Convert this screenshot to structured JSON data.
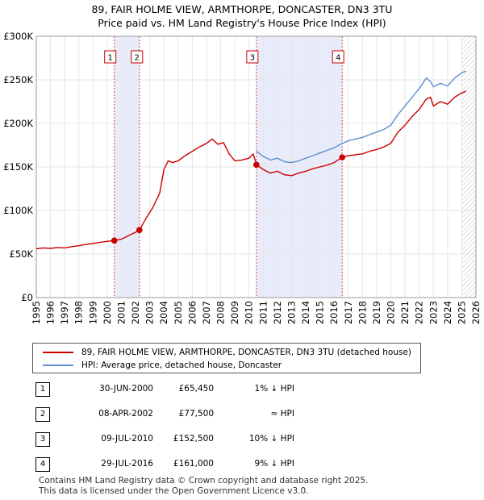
{
  "chart_data": {
    "type": "line",
    "title": "89, FAIR HOLME VIEW, ARMTHORPE, DONCASTER, DN3 3TU",
    "subtitle": "Price paid vs. HM Land Registry's House Price Index (HPI)",
    "xlim": [
      1995,
      2026
    ],
    "ylim": [
      0,
      300000
    ],
    "x_ticks": [
      "1995",
      "1996",
      "1997",
      "1998",
      "1999",
      "2000",
      "2001",
      "2002",
      "2003",
      "2004",
      "2005",
      "2006",
      "2007",
      "2008",
      "2009",
      "2010",
      "2011",
      "2012",
      "2013",
      "2014",
      "2015",
      "2016",
      "2017",
      "2018",
      "2019",
      "2020",
      "2021",
      "2022",
      "2023",
      "2024",
      "2025",
      "2026"
    ],
    "y_ticks": [
      {
        "value": 0,
        "label": "£0"
      },
      {
        "value": 50000,
        "label": "£50K"
      },
      {
        "value": 100000,
        "label": "£100K"
      },
      {
        "value": 150000,
        "label": "£150K"
      },
      {
        "value": 200000,
        "label": "£200K"
      },
      {
        "value": 250000,
        "label": "£250K"
      },
      {
        "value": 300000,
        "label": "£300K"
      }
    ],
    "shaded_periods": [
      [
        2000.5,
        2002.27
      ],
      [
        2010.52,
        2016.57
      ]
    ],
    "forecast_start": 2025.0,
    "series": [
      {
        "name": "89, FAIR HOLME VIEW, ARMTHORPE, DONCASTER, DN3 3TU (detached house)",
        "color": "#cc0000",
        "points": [
          [
            1995.0,
            56000
          ],
          [
            1995.5,
            57000
          ],
          [
            1996.0,
            56500
          ],
          [
            1996.5,
            57500
          ],
          [
            1997.0,
            57000
          ],
          [
            1997.5,
            58500
          ],
          [
            1998.0,
            59500
          ],
          [
            1998.5,
            61000
          ],
          [
            1999.0,
            62000
          ],
          [
            1999.5,
            63500
          ],
          [
            2000.0,
            64500
          ],
          [
            2000.5,
            65450
          ],
          [
            2001.0,
            67000
          ],
          [
            2001.5,
            71000
          ],
          [
            2002.0,
            75000
          ],
          [
            2002.27,
            77500
          ],
          [
            2002.7,
            90000
          ],
          [
            2003.2,
            103000
          ],
          [
            2003.7,
            120000
          ],
          [
            2004.0,
            147000
          ],
          [
            2004.3,
            157000
          ],
          [
            2004.6,
            155000
          ],
          [
            2005.0,
            157000
          ],
          [
            2005.5,
            163000
          ],
          [
            2006.0,
            168000
          ],
          [
            2006.5,
            173000
          ],
          [
            2007.0,
            177000
          ],
          [
            2007.4,
            182000
          ],
          [
            2007.8,
            176000
          ],
          [
            2008.2,
            178000
          ],
          [
            2008.6,
            165000
          ],
          [
            2009.0,
            157000
          ],
          [
            2009.5,
            158000
          ],
          [
            2010.0,
            160000
          ],
          [
            2010.3,
            165000
          ],
          [
            2010.52,
            152500
          ],
          [
            2011.0,
            147000
          ],
          [
            2011.5,
            143000
          ],
          [
            2012.0,
            145000
          ],
          [
            2012.5,
            141000
          ],
          [
            2013.0,
            140000
          ],
          [
            2013.5,
            143000
          ],
          [
            2014.0,
            145000
          ],
          [
            2014.5,
            148000
          ],
          [
            2015.0,
            150000
          ],
          [
            2015.5,
            152000
          ],
          [
            2016.0,
            155000
          ],
          [
            2016.57,
            161000
          ],
          [
            2017.0,
            163000
          ],
          [
            2017.5,
            164000
          ],
          [
            2018.0,
            165000
          ],
          [
            2018.5,
            168000
          ],
          [
            2019.0,
            170000
          ],
          [
            2019.5,
            173000
          ],
          [
            2020.0,
            177000
          ],
          [
            2020.5,
            190000
          ],
          [
            2021.0,
            198000
          ],
          [
            2021.5,
            208000
          ],
          [
            2022.0,
            216000
          ],
          [
            2022.5,
            228000
          ],
          [
            2022.8,
            230000
          ],
          [
            2023.0,
            220000
          ],
          [
            2023.5,
            225000
          ],
          [
            2024.0,
            222000
          ],
          [
            2024.5,
            230000
          ],
          [
            2025.0,
            235000
          ],
          [
            2025.3,
            237000
          ]
        ]
      },
      {
        "name": "HPI: Average price, detached house, Doncaster",
        "color": "#5b8fd0",
        "points": [
          [
            2010.52,
            168000
          ],
          [
            2011.0,
            162000
          ],
          [
            2011.5,
            158000
          ],
          [
            2012.0,
            160000
          ],
          [
            2012.5,
            156000
          ],
          [
            2013.0,
            155000
          ],
          [
            2013.5,
            157000
          ],
          [
            2014.0,
            160000
          ],
          [
            2014.5,
            163000
          ],
          [
            2015.0,
            166000
          ],
          [
            2015.5,
            169000
          ],
          [
            2016.0,
            172000
          ],
          [
            2016.57,
            177000
          ],
          [
            2017.0,
            180000
          ],
          [
            2017.5,
            182000
          ],
          [
            2018.0,
            184000
          ],
          [
            2018.5,
            187000
          ],
          [
            2019.0,
            190000
          ],
          [
            2019.5,
            193000
          ],
          [
            2020.0,
            198000
          ],
          [
            2020.5,
            210000
          ],
          [
            2021.0,
            220000
          ],
          [
            2021.5,
            230000
          ],
          [
            2022.0,
            240000
          ],
          [
            2022.5,
            252000
          ],
          [
            2022.8,
            248000
          ],
          [
            2023.0,
            242000
          ],
          [
            2023.5,
            246000
          ],
          [
            2024.0,
            243000
          ],
          [
            2024.5,
            252000
          ],
          [
            2025.0,
            258000
          ],
          [
            2025.3,
            260000
          ]
        ]
      }
    ],
    "sales": [
      {
        "label": "1",
        "date": "30-JUN-2000",
        "x": 2000.5,
        "price": 65450,
        "hpi": "1% ↓ HPI"
      },
      {
        "label": "2",
        "date": "08-APR-2002",
        "x": 2002.27,
        "price": 77500,
        "hpi": "≈ HPI"
      },
      {
        "label": "3",
        "date": "09-JUL-2010",
        "x": 2010.52,
        "price": 152500,
        "hpi": "10% ↓ HPI"
      },
      {
        "label": "4",
        "date": "29-JUL-2016",
        "x": 2016.57,
        "price": 161000,
        "hpi": "9% ↓ HPI"
      }
    ]
  },
  "legend": {
    "red": "89, FAIR HOLME VIEW, ARMTHORPE, DONCASTER, DN3 3TU (detached house)",
    "blue": "HPI: Average price, detached house, Doncaster"
  },
  "table": [
    {
      "num": "1",
      "date": "30-JUN-2000",
      "price": "£65,450",
      "hpi": "1% ↓ HPI"
    },
    {
      "num": "2",
      "date": "08-APR-2002",
      "price": "£77,500",
      "hpi": "≈ HPI"
    },
    {
      "num": "3",
      "date": "09-JUL-2010",
      "price": "£152,500",
      "hpi": "10% ↓ HPI"
    },
    {
      "num": "4",
      "date": "29-JUL-2016",
      "price": "£161,000",
      "hpi": "9% ↓ HPI"
    }
  ],
  "footer": {
    "line1": "Contains HM Land Registry data © Crown copyright and database right 2025.",
    "line2": "This data is licensed under the Open Government Licence v3.0."
  }
}
